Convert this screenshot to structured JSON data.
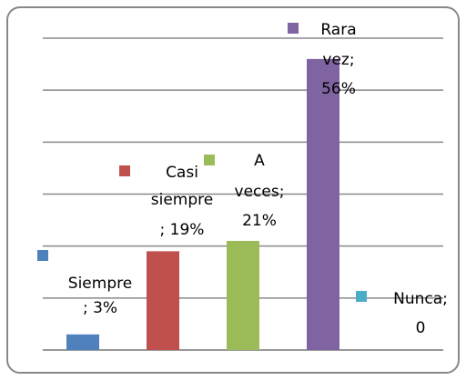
{
  "chart_data": {
    "type": "bar",
    "categories": [
      "Siempre",
      "Casi siempre",
      "A veces",
      "Rara vez",
      "Nunca"
    ],
    "values": [
      3,
      19,
      21,
      56,
      0
    ],
    "value_labels": [
      [
        "Siempre",
        "; 3%"
      ],
      [
        "Casi",
        "siempre",
        "; 19%"
      ],
      [
        "A",
        "veces;",
        "21%"
      ],
      [
        "Rara",
        "vez;",
        "56%"
      ],
      [
        "Nunca;",
        "0"
      ]
    ],
    "colors": [
      "#4f81bd",
      "#c0504d",
      "#9bbb59",
      "#8064a2",
      "#4bacc6"
    ],
    "ylim": [
      0,
      60
    ],
    "yticks": [
      0,
      10,
      20,
      30,
      40,
      50,
      60
    ],
    "grid": true
  }
}
